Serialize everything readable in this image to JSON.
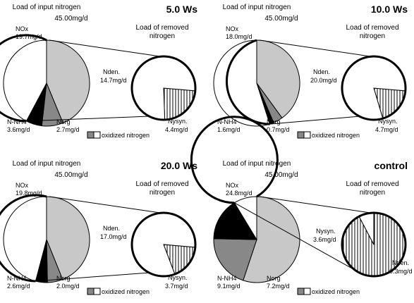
{
  "chart_data": [
    {
      "type": "pie",
      "title": "5.0 Ws",
      "input_title": "Load of input nitrogen",
      "input_total": "45.00mg/d",
      "removed_title": [
        "Load of removed",
        "nitrogen"
      ],
      "input_slices": [
        {
          "name": "NOx",
          "value": 19.7,
          "label": "NOx",
          "value_label": "19.7mg/d",
          "fill": "#c8c8c8"
        },
        {
          "name": "N-NH4",
          "value": 3.6,
          "label": "N-NH4",
          "value_label": "3.6mg/d",
          "fill": "#888888"
        },
        {
          "name": "Norg",
          "value": 2.7,
          "label": "Norg",
          "value_label": "2.7mg/d",
          "fill": "#000000"
        },
        {
          "name": "removed",
          "value": 19.0,
          "fill": "#ffffff"
        }
      ],
      "removed_slices": [
        {
          "name": "Nden.",
          "value": 14.7,
          "label": "Nden.",
          "value_label": "14.7mg/d",
          "fill": "#ffffff"
        },
        {
          "name": "Nysyn.",
          "value": 4.4,
          "label": "Nysyn.",
          "value_label": "4.4mg/d",
          "fill": "hatch"
        }
      ],
      "legend": "oxidized nitrogen"
    },
    {
      "type": "pie",
      "title": "10.0 Ws",
      "input_title": "Load of input nitrogen",
      "input_total": "45.00mg/d",
      "removed_title": [
        "Load of removed",
        "nitrogen"
      ],
      "input_slices": [
        {
          "name": "NOx",
          "value": 18.0,
          "label": "NOx",
          "value_label": "18.0mg/d",
          "fill": "#c8c8c8"
        },
        {
          "name": "N-NH4",
          "value": 1.6,
          "label": "N-NH4",
          "value_label": "1.6mg/d",
          "fill": "#888888"
        },
        {
          "name": "Norg",
          "value": 0.7,
          "label": "Norg",
          "value_label": "0.7mg/d",
          "fill": "#000000"
        },
        {
          "name": "removed",
          "value": 24.7,
          "fill": "#ffffff"
        }
      ],
      "removed_slices": [
        {
          "name": "Nden.",
          "value": 20.0,
          "label": "Nden.",
          "value_label": "20.0mg/d",
          "fill": "#ffffff"
        },
        {
          "name": "Nysyn.",
          "value": 4.7,
          "label": "Nysyn.",
          "value_label": "4.7mg/d",
          "fill": "hatch"
        }
      ],
      "legend": "oxidized nitrogen"
    },
    {
      "type": "pie",
      "title": "20.0 Ws",
      "input_title": "Load of input nitrogen",
      "input_total": "45.00mg/d",
      "removed_title": [
        "Load of removed",
        "nitrogen"
      ],
      "input_slices": [
        {
          "name": "NOx",
          "value": 19.8,
          "label": "NOx",
          "value_label": "19.8mg/d",
          "fill": "#c8c8c8"
        },
        {
          "name": "N-NH4",
          "value": 2.6,
          "label": "N-NH4",
          "value_label": "2.6mg/d",
          "fill": "#888888"
        },
        {
          "name": "Norg",
          "value": 2.0,
          "label": "Norg",
          "value_label": "2.0mg/d",
          "fill": "#000000"
        },
        {
          "name": "removed",
          "value": 20.7,
          "fill": "#ffffff"
        }
      ],
      "removed_slices": [
        {
          "name": "Nden.",
          "value": 17.0,
          "label": "Nden.",
          "value_label": "17.0mg/d",
          "fill": "#ffffff"
        },
        {
          "name": "Nysyn.",
          "value": 3.7,
          "label": "Nysyn.",
          "value_label": "3.7mg/d",
          "fill": "hatch"
        }
      ],
      "legend": "oxidized nitrogen"
    },
    {
      "type": "pie",
      "title": "control",
      "input_title": "Load of input nitrogen",
      "input_total": "45.00mg/d",
      "removed_title": [
        "Load of removed",
        "nitrogen"
      ],
      "input_slices": [
        {
          "name": "NOx",
          "value": 24.8,
          "label": "NOx",
          "value_label": "24.8mg/d",
          "fill": "#c8c8c8"
        },
        {
          "name": "N-NH4",
          "value": 9.1,
          "label": "N-NH4",
          "value_label": "9.1mg/d",
          "fill": "#888888"
        },
        {
          "name": "Norg",
          "value": 7.2,
          "label": "Norg",
          "value_label": "7.2mg/d",
          "fill": "#000000"
        },
        {
          "name": "removed",
          "value": 3.9,
          "fill": "#ffffff"
        }
      ],
      "removed_slices": [
        {
          "name": "Nysyn.",
          "value": 3.6,
          "label": "Nysyn.",
          "value_label": "3.6mg/d",
          "fill": "hatch"
        },
        {
          "name": "Nden.",
          "value": 0.3,
          "label": "Nden.",
          "value_label": "0.3mg/d",
          "fill": "#ffffff"
        }
      ],
      "legend": "oxidized nitrogen"
    }
  ]
}
